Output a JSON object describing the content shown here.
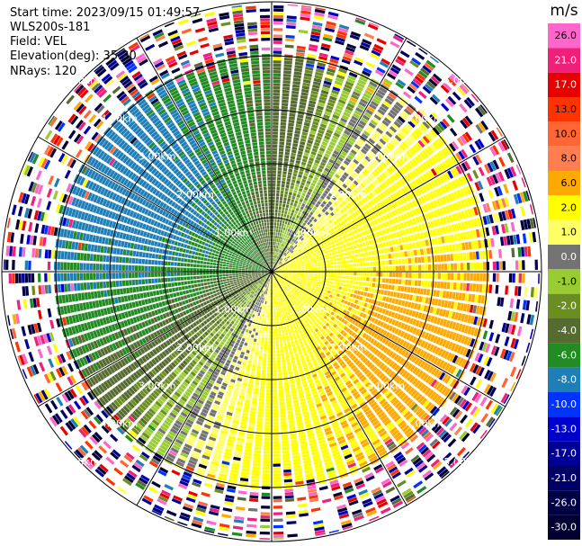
{
  "header": {
    "start_time": "Start time: 2023/09/15 01:49:57",
    "instrument": "WLS200s-181",
    "field": "Field: VEL",
    "elevation": "Elevation(deg): 35.30",
    "nrays": "NRays: 120"
  },
  "chart_data": {
    "type": "ppi",
    "field": "VEL",
    "units": "m/s",
    "range_rings_km": [
      1,
      2,
      3,
      4,
      5
    ],
    "range_labels": [
      "1.00km",
      "2.00km",
      "3.00km",
      "4.00km",
      "5.00km"
    ],
    "colorbar": {
      "levels": [
        {
          "label": "26.0",
          "color": "#ff66cc"
        },
        {
          "label": "21.0",
          "color": "#f0207a"
        },
        {
          "label": "17.0",
          "color": "#e80000"
        },
        {
          "label": "13.0",
          "color": "#ff3300"
        },
        {
          "label": "10.0",
          "color": "#ff6633"
        },
        {
          "label": "8.0",
          "color": "#ff7f50"
        },
        {
          "label": "6.0",
          "color": "#ffaa00"
        },
        {
          "label": "2.0",
          "color": "#ffff00"
        },
        {
          "label": "1.0",
          "color": "#ffff66"
        },
        {
          "label": "0.0",
          "color": "#737373"
        },
        {
          "label": "-1.0",
          "color": "#99cc33"
        },
        {
          "label": "-2.0",
          "color": "#6b8e23"
        },
        {
          "label": "-4.0",
          "color": "#556b2f"
        },
        {
          "label": "-6.0",
          "color": "#228b22"
        },
        {
          "label": "-8.0",
          "color": "#1e7fb8"
        },
        {
          "label": "-10.0",
          "color": "#0033ff"
        },
        {
          "label": "-13.0",
          "color": "#0000cc"
        },
        {
          "label": "-17.0",
          "color": "#000099"
        },
        {
          "label": "-21.0",
          "color": "#000066"
        },
        {
          "label": "-26.0",
          "color": "#000044"
        },
        {
          "label": "-30.0",
          "color": "#000033"
        }
      ]
    },
    "pattern": {
      "approaching_sector_deg": [
        180,
        360
      ],
      "receding_sector_deg": [
        0,
        180
      ],
      "peak_speed_ms": 7,
      "reliable_range_km": 4.0,
      "noise_range_km": 5.3
    }
  }
}
